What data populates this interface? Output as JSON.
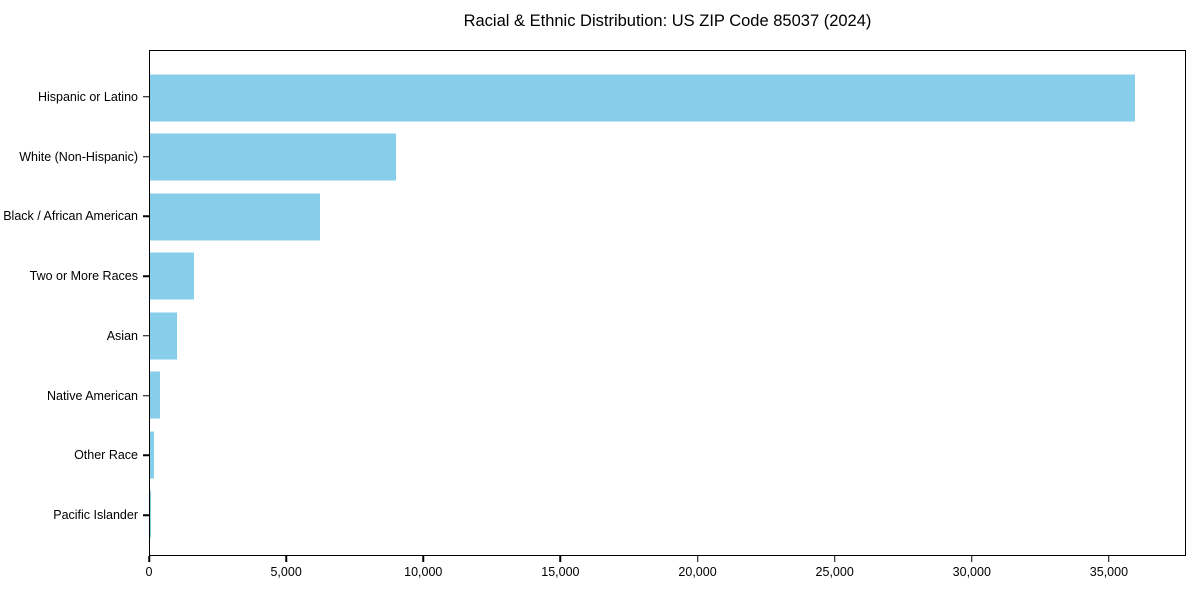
{
  "colors": {
    "bar": "#87CEEB",
    "axis": "#000000",
    "background": "#FFFFFF",
    "text": "#000000"
  },
  "chart_data": {
    "type": "bar",
    "orientation": "horizontal",
    "title": "Racial & Ethnic Distribution: US ZIP Code 85037 (2024)",
    "xlabel": "",
    "ylabel": "",
    "categories": [
      "Hispanic or Latino",
      "White (Non-Hispanic)",
      "Black / African American",
      "Two or More Races",
      "Asian",
      "Native American",
      "Other Race",
      "Pacific Islander"
    ],
    "values": [
      36000,
      9000,
      6200,
      1600,
      1000,
      380,
      160,
      30
    ],
    "xlim": [
      0,
      37810
    ],
    "xticks": [
      0,
      5000,
      10000,
      15000,
      20000,
      25000,
      30000,
      35000
    ],
    "xtick_labels": [
      "0",
      "5,000",
      "10,000",
      "15,000",
      "20,000",
      "25,000",
      "30,000",
      "35,000"
    ],
    "grid": false,
    "legend": null,
    "bar_color": "#87CEEB"
  }
}
